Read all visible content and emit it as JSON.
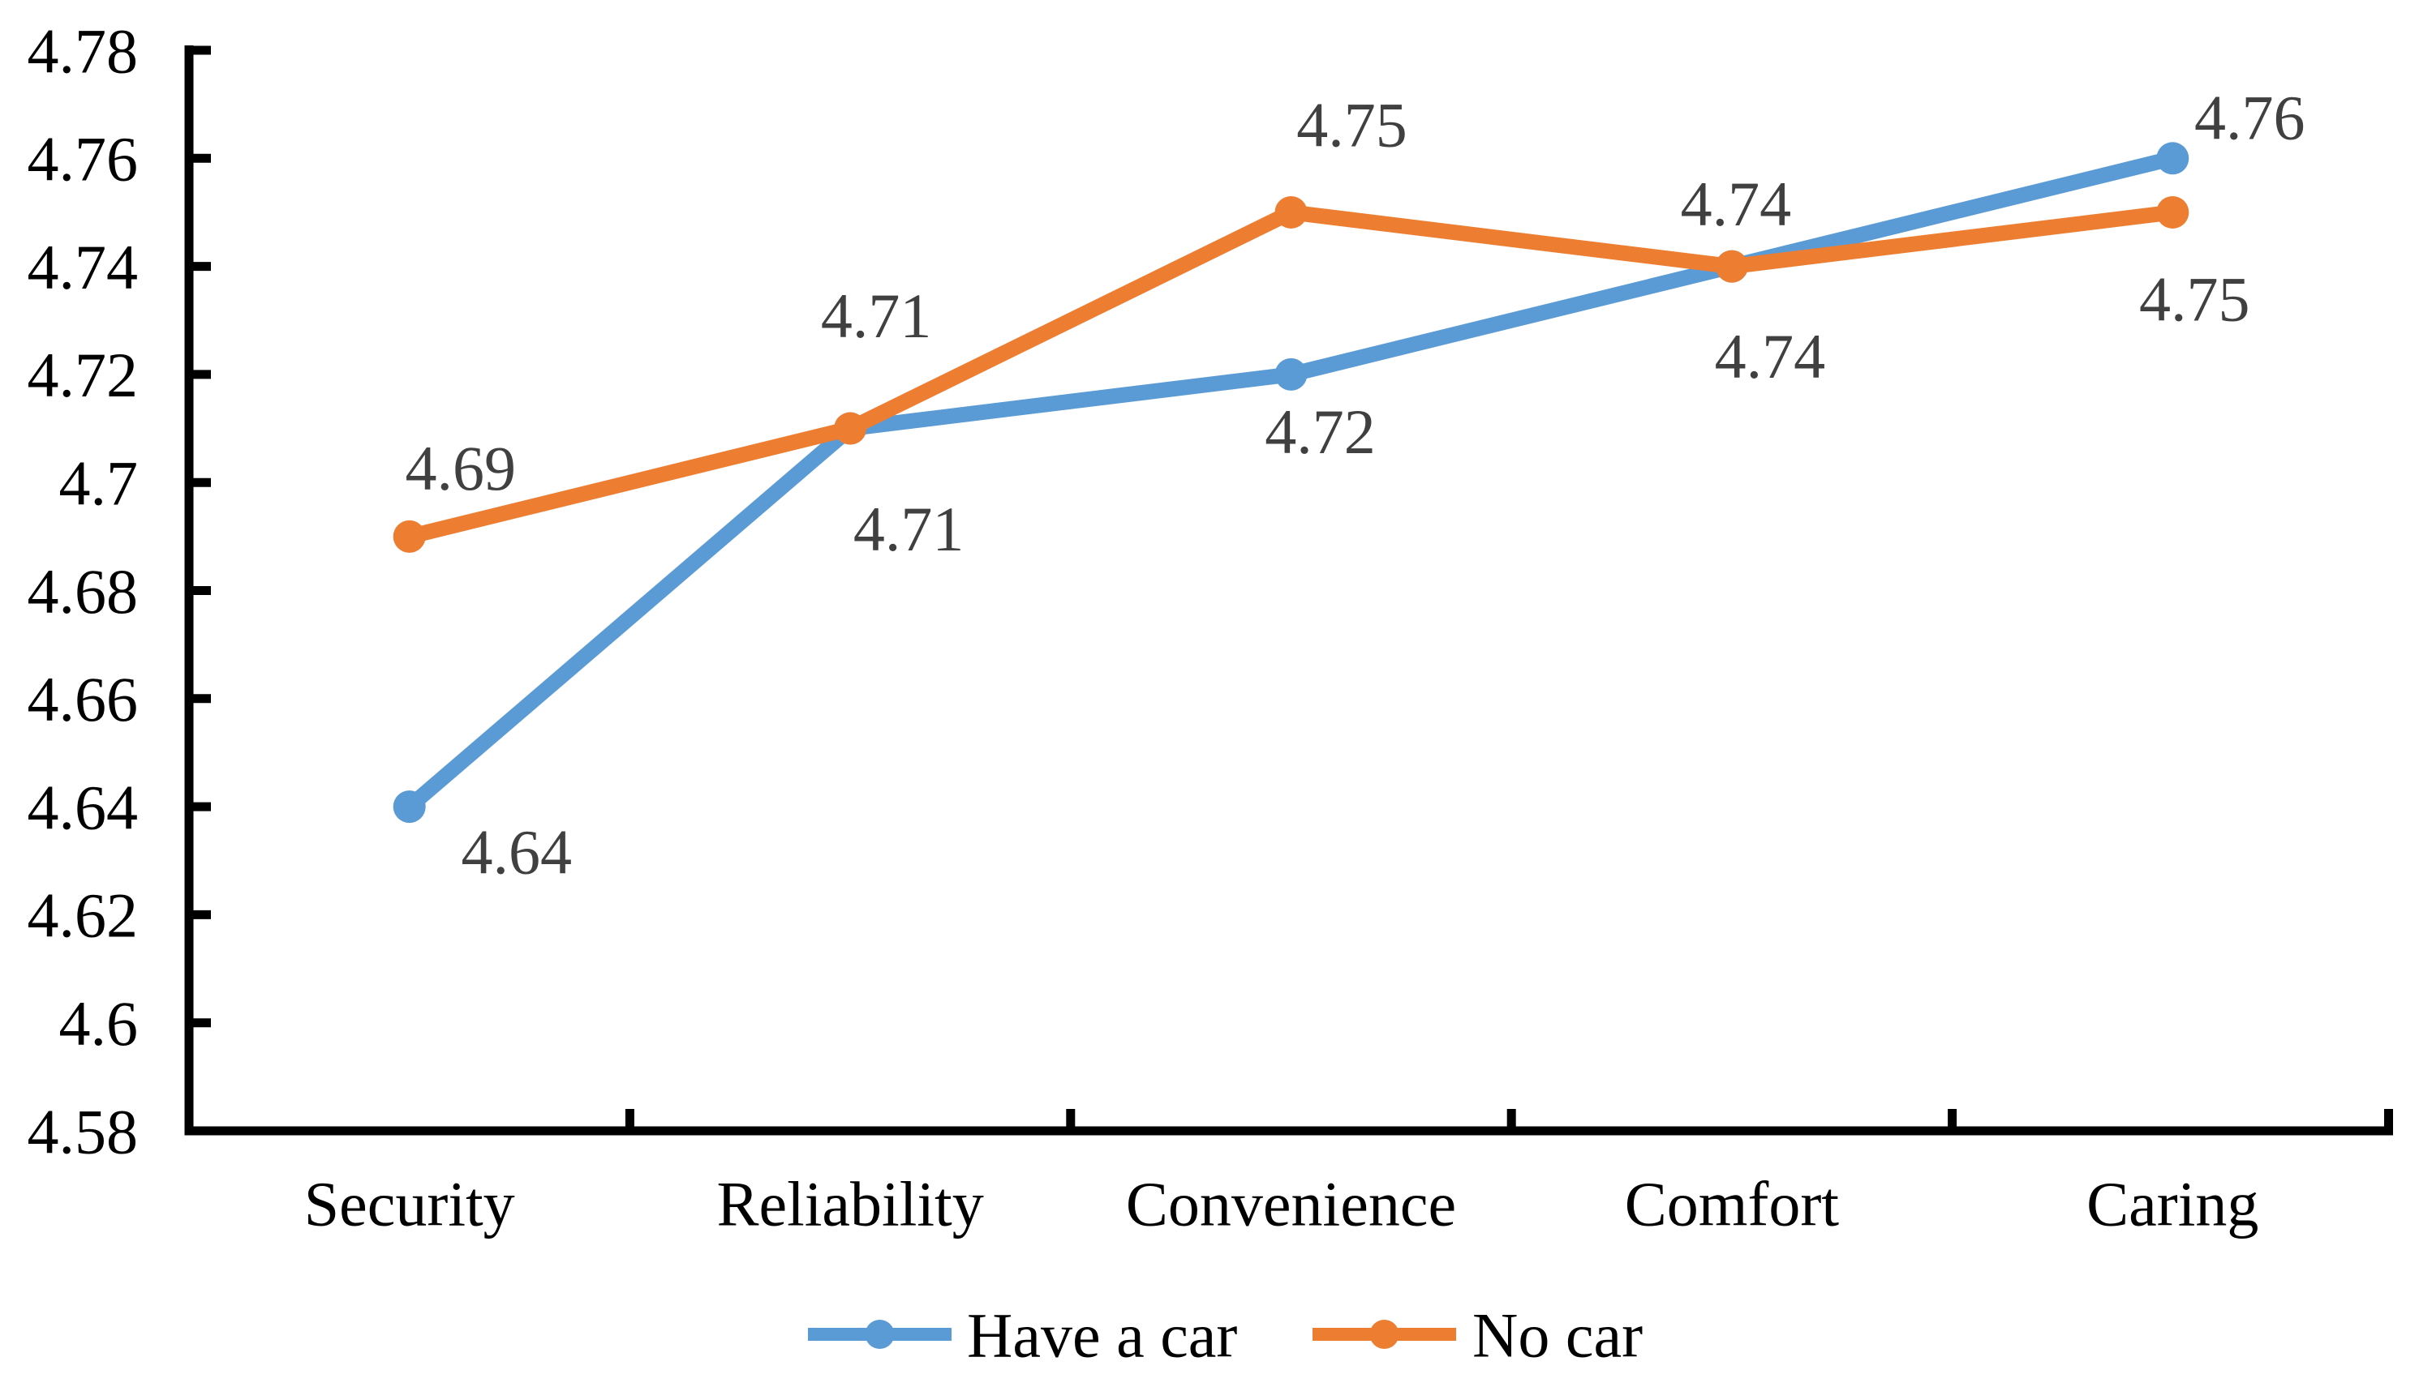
{
  "chart_data": {
    "type": "line",
    "title": "",
    "xlabel": "",
    "ylabel": "",
    "grid": false,
    "categories": [
      "Security",
      "Reliability",
      "Convenience",
      "Comfort",
      "Caring"
    ],
    "series": [
      {
        "name": "Have a car",
        "color": "#5B9BD5",
        "values": [
          4.64,
          4.71,
          4.72,
          4.74,
          4.76
        ],
        "labels": [
          "4.64",
          "4.71",
          "4.72",
          "4.74",
          "4.76"
        ]
      },
      {
        "name": "No car",
        "color": "#ED7D31",
        "values": [
          4.69,
          4.71,
          4.75,
          4.74,
          4.75
        ],
        "labels": [
          "4.69",
          "4.71",
          "4.75",
          "4.74",
          "4.75"
        ]
      }
    ],
    "y_axis": {
      "min": 4.58,
      "max": 4.78,
      "tick_step": 0.02,
      "tick_labels": [
        "4.78",
        "4.76",
        "4.74",
        "4.72",
        "4.7",
        "4.68",
        "4.66",
        "4.64",
        "4.62",
        "4.6",
        "4.58"
      ]
    },
    "legend": {
      "position": "bottom",
      "items": [
        "Have a car",
        "No car"
      ]
    },
    "colors": {
      "axis": "#000000",
      "axis_text": "#000000",
      "data_label": "#404040",
      "background": "#ffffff"
    }
  }
}
